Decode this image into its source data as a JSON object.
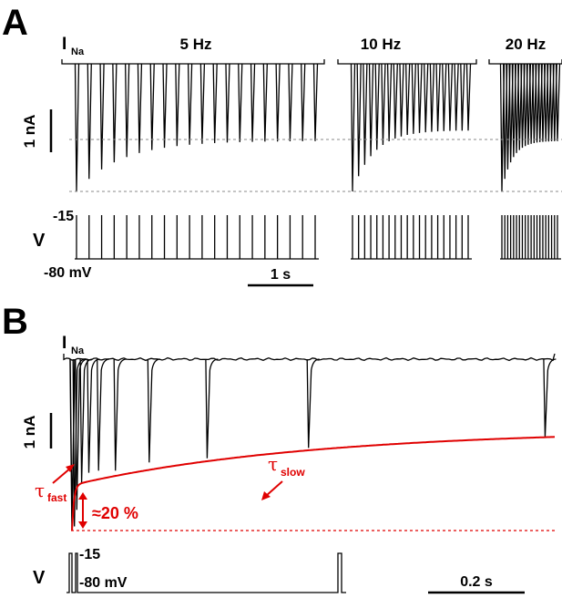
{
  "chart_data": [
    {
      "panel": "A",
      "type": "line",
      "current_label_main": "I",
      "current_label_sub": "Na",
      "voltage_label": "V",
      "current_scale_label": "1 nA",
      "time_scale_label": "1 s",
      "v_high_label": "-15",
      "v_low_label": "-80 mV",
      "sweeps": [
        {
          "name": "5 Hz",
          "pulses": 20,
          "first_peak_nA": -2.4,
          "steady_peak_nA": -1.45
        },
        {
          "name": "10 Hz",
          "pulses": 20,
          "first_peak_nA": -2.4,
          "steady_peak_nA": -1.25
        },
        {
          "name": "20 Hz",
          "pulses": 20,
          "first_peak_nA": -2.4,
          "steady_peak_nA": -1.45
        }
      ]
    },
    {
      "panel": "B",
      "type": "line",
      "current_label_main": "I",
      "current_label_sub": "Na",
      "voltage_label": "V",
      "current_scale_label": "1 nA",
      "time_scale_label": "0.2 s",
      "v_high_label": "-15",
      "v_low_label": "-80 mV",
      "tau_fast_symbol": "τ",
      "tau_fast_sub": "fast",
      "tau_slow_symbol": "τ",
      "tau_slow_sub": "slow",
      "percent_label": "≈20 %",
      "recovery_intervals_s": [
        0.005,
        0.01,
        0.02,
        0.035,
        0.055,
        0.09,
        0.16,
        0.28,
        0.49,
        0.98
      ],
      "peak_nA": [
        -4.05,
        -3.65,
        -3.0,
        -2.75,
        -2.7,
        -2.7,
        -2.5,
        -2.4,
        -2.15,
        -1.9
      ],
      "first_peak_nA": -4.15,
      "colors": {
        "trace": "#000000",
        "fit": "#e00000"
      }
    }
  ]
}
